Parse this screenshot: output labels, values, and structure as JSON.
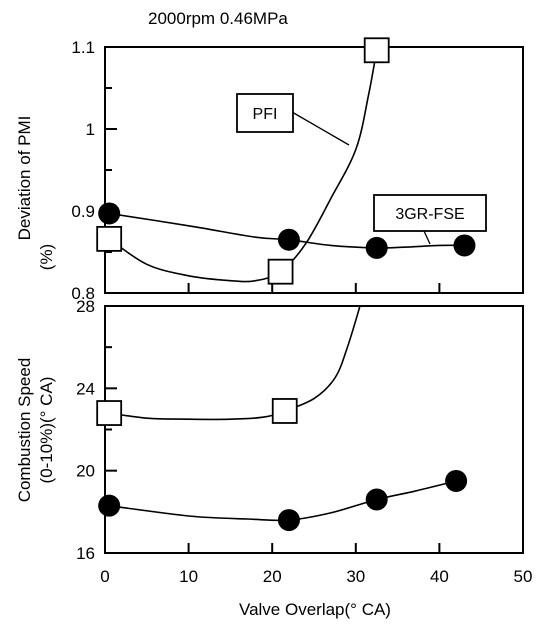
{
  "chart_data": {
    "title": "2000rpm 0.46MPa",
    "xlabel": "Valve Overlap(° CA)",
    "xlim": [
      0,
      50
    ],
    "xticks": [
      0,
      10,
      20,
      30,
      40,
      50
    ],
    "panels": [
      {
        "type": "line",
        "ylabel_lines": [
          "Deviation of PMI",
          "(%)"
        ],
        "ylim": [
          0.8,
          1.1
        ],
        "yticks": [
          {
            "value": 0.8,
            "label": "0.8"
          },
          {
            "value": 0.9,
            "label": "0.9"
          },
          {
            "value": 1.0,
            "label": "1"
          },
          {
            "value": 1.1,
            "label": "1.1"
          }
        ],
        "series": [
          {
            "name": "PFI",
            "marker": "square",
            "points": [
              [
                0.5,
                0.866
              ],
              [
                21,
                0.826
              ],
              [
                32.5,
                1.096
              ]
            ],
            "curve": [
              [
                0.5,
                0.866
              ],
              [
                5,
                0.835
              ],
              [
                10,
                0.821
              ],
              [
                15,
                0.815
              ],
              [
                18,
                0.815
              ],
              [
                21,
                0.826
              ],
              [
                24,
                0.86
              ],
              [
                27,
                0.915
              ],
              [
                30,
                0.975
              ],
              [
                31.5,
                1.04
              ],
              [
                32.5,
                1.096
              ]
            ]
          },
          {
            "name": "3GR-FSE",
            "marker": "circle",
            "points": [
              [
                0.5,
                0.897
              ],
              [
                22,
                0.865
              ],
              [
                32.5,
                0.855
              ],
              [
                43,
                0.858
              ]
            ],
            "curve": [
              [
                0.5,
                0.897
              ],
              [
                10,
                0.882
              ],
              [
                18,
                0.868
              ],
              [
                22,
                0.865
              ],
              [
                27,
                0.858
              ],
              [
                32.5,
                0.855
              ],
              [
                36,
                0.856
              ],
              [
                40,
                0.858
              ],
              [
                43,
                0.858
              ]
            ]
          }
        ]
      },
      {
        "type": "line",
        "ylabel_lines": [
          "Combustion Speed",
          "(0-10%)(° CA)"
        ],
        "ylim": [
          16,
          28
        ],
        "yticks": [
          {
            "value": 16,
            "label": "16"
          },
          {
            "value": 20,
            "label": "20"
          },
          {
            "value": 24,
            "label": "24"
          },
          {
            "value": 28,
            "label": "28"
          }
        ],
        "series": [
          {
            "name": "PFI",
            "marker": "square",
            "points": [
              [
                0.5,
                22.8
              ],
              [
                21.5,
                22.9
              ]
            ],
            "curve": [
              [
                0.5,
                22.8
              ],
              [
                5,
                22.55
              ],
              [
                10,
                22.5
              ],
              [
                15,
                22.5
              ],
              [
                19,
                22.6
              ],
              [
                21.5,
                22.9
              ],
              [
                25,
                23.5
              ],
              [
                27.5,
                24.5
              ],
              [
                29,
                26
              ],
              [
                30.5,
                28
              ]
            ]
          },
          {
            "name": "3GR-FSE",
            "marker": "circle",
            "points": [
              [
                0.5,
                18.3
              ],
              [
                22,
                17.6
              ],
              [
                32.5,
                18.6
              ],
              [
                42,
                19.5
              ]
            ],
            "curve": [
              [
                0.5,
                18.3
              ],
              [
                10,
                17.8
              ],
              [
                17,
                17.65
              ],
              [
                22,
                17.6
              ],
              [
                27,
                17.95
              ],
              [
                32.5,
                18.6
              ],
              [
                37,
                19.0
              ],
              [
                42,
                19.5
              ]
            ]
          }
        ]
      }
    ],
    "annotations": [
      "PFI",
      "3GR-FSE"
    ]
  }
}
